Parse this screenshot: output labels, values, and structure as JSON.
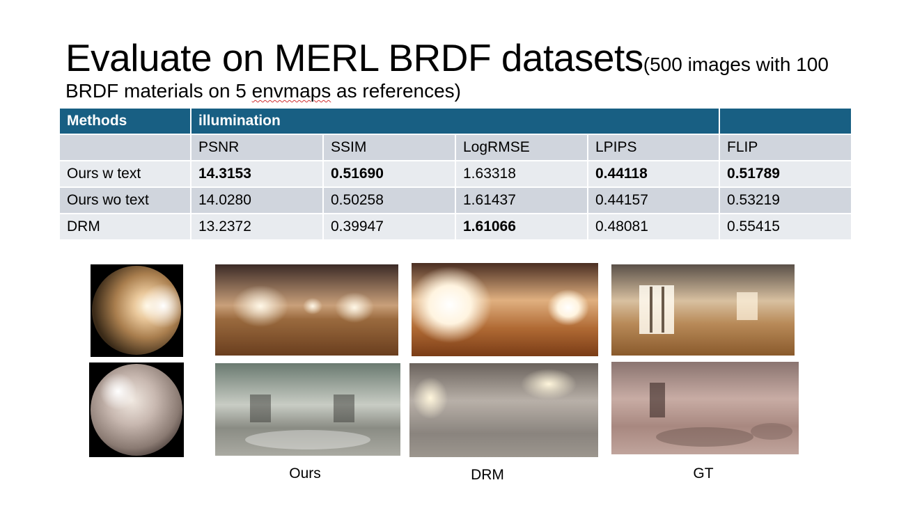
{
  "title": {
    "main": "Evaluate on MERL BRDF datasets",
    "sub_part1": "(500 images with 100",
    "sub_part2_a": "BRDF materials on 5 ",
    "sub_part2_b": "envmaps",
    "sub_part2_c": " as references)"
  },
  "table": {
    "header": [
      "Methods",
      "illumination",
      ""
    ],
    "metrics": [
      "",
      "PSNR",
      "SSIM",
      "LogRMSE",
      "LPIPS",
      "FLIP"
    ],
    "rows": [
      {
        "method": "Ours w text",
        "values": [
          "14.3153",
          "0.51690",
          "1.63318",
          "0.44118",
          "0.51789"
        ],
        "bold": [
          true,
          true,
          false,
          true,
          true
        ]
      },
      {
        "method": "Ours wo text",
        "values": [
          "14.0280",
          "0.50258",
          "1.61437",
          "0.44157",
          "0.53219"
        ],
        "bold": [
          false,
          false,
          false,
          false,
          false
        ]
      },
      {
        "method": "DRM",
        "values": [
          "13.2372",
          "0.39947",
          "1.61066",
          "0.48081",
          "0.55415"
        ],
        "bold": [
          false,
          false,
          true,
          false,
          false
        ]
      }
    ]
  },
  "labels": {
    "ours": "Ours",
    "drm": "DRM",
    "gt": "GT"
  },
  "colors": {
    "header_bg": "#185f83",
    "row_dark": "#d0d5dd",
    "row_light": "#e8ebef"
  }
}
